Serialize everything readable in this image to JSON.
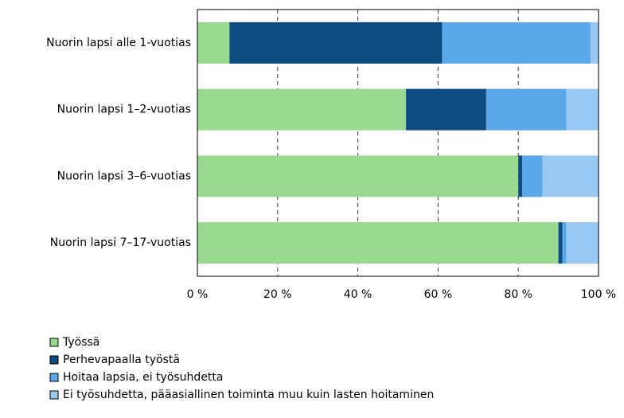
{
  "chart_data": {
    "type": "stacked-bar-horizontal",
    "categories": [
      "Nuorin lapsi alle 1-vuotias",
      "Nuorin lapsi 1–2-vuotias",
      "Nuorin lapsi 3–6-vuotias",
      "Nuorin lapsi 7–17-vuotias"
    ],
    "series": [
      {
        "name": "Työssä",
        "color": "#99d98f",
        "values": [
          8,
          52,
          80,
          90
        ]
      },
      {
        "name": "Perhevapaalla työstä",
        "color": "#0f4c81",
        "values": [
          53,
          20,
          1,
          1
        ]
      },
      {
        "name": "Hoitaa lapsia, ei työsuhdetta",
        "color": "#5aa7e9",
        "values": [
          37,
          20,
          5,
          1
        ]
      },
      {
        "name": "Ei työsuhdetta, pääasiallinen toiminta muu kuin lasten hoitaminen",
        "color": "#99c8f2",
        "values": [
          2,
          8,
          14,
          8
        ]
      }
    ],
    "xlim": [
      0,
      100
    ],
    "xticks": [
      {
        "value": 0,
        "label": "0 %"
      },
      {
        "value": 20,
        "label": "20 %"
      },
      {
        "value": 40,
        "label": "40 %"
      },
      {
        "value": 60,
        "label": "60 %"
      },
      {
        "value": 80,
        "label": "80 %"
      },
      {
        "value": 100,
        "label": "100 %"
      }
    ],
    "grid": true
  }
}
